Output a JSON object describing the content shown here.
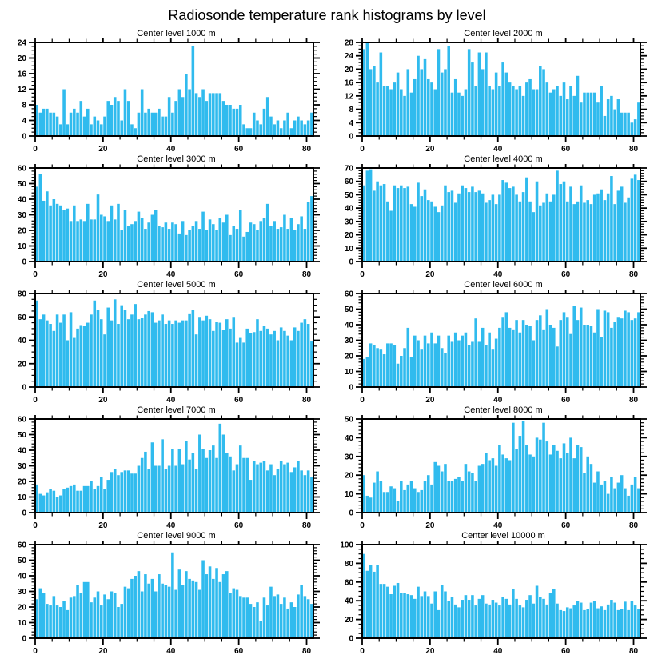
{
  "page_title": "Radiosonde temperature rank histograms by level",
  "colors": {
    "bar": "#30BBEE",
    "frame": "#000000",
    "background": "#FFFFFF"
  },
  "chart_data": [
    {
      "type": "bar",
      "title": "Center level 1000 m",
      "xlabel": "",
      "ylabel": "",
      "xlim": [
        0,
        82
      ],
      "ylim": [
        0,
        24
      ],
      "x_major_ticks": [
        0,
        20,
        40,
        60,
        80
      ],
      "x_minor_step": 5,
      "y_major_step": 4,
      "y_minor_step": 1,
      "grid": false,
      "legend": "none",
      "values": [
        8,
        6,
        7,
        7,
        6,
        6,
        5,
        3,
        12,
        3,
        6,
        7,
        6,
        9,
        5,
        7,
        3,
        5,
        4,
        3,
        5,
        9,
        8,
        10,
        9,
        4,
        12,
        9,
        3,
        2,
        6,
        12,
        6,
        7,
        6,
        6,
        7,
        5,
        5,
        10,
        6,
        9,
        12,
        10,
        16,
        12,
        23,
        11,
        10,
        12,
        9,
        11,
        11,
        11,
        11,
        9,
        8,
        8,
        7,
        7,
        8,
        3,
        2,
        2,
        6,
        4,
        3,
        7,
        10,
        5,
        3,
        4,
        2,
        4,
        6,
        2,
        4,
        5,
        4,
        3,
        4,
        6
      ]
    },
    {
      "type": "bar",
      "title": "Center level 2000 m",
      "xlabel": "",
      "ylabel": "",
      "xlim": [
        0,
        82
      ],
      "ylim": [
        0,
        28
      ],
      "x_major_ticks": [
        0,
        20,
        40,
        60,
        80
      ],
      "x_minor_step": 5,
      "y_major_step": 4,
      "y_minor_step": 1,
      "grid": false,
      "legend": "none",
      "values": [
        26,
        28,
        20,
        21,
        16,
        25,
        15,
        15,
        14,
        16,
        19,
        14,
        12,
        20,
        13,
        17,
        24,
        20,
        23,
        17,
        16,
        14,
        26,
        19,
        20,
        27,
        13,
        17,
        13,
        12,
        14,
        26,
        22,
        15,
        25,
        20,
        25,
        15,
        14,
        19,
        15,
        22,
        19,
        16,
        15,
        14,
        15,
        12,
        16,
        17,
        14,
        14,
        21,
        20,
        16,
        13,
        14,
        15,
        12,
        16,
        11,
        15,
        12,
        18,
        10,
        13,
        13,
        13,
        13,
        10,
        15,
        6,
        11,
        12,
        8,
        11,
        7,
        7,
        7,
        4,
        5,
        10
      ]
    },
    {
      "type": "bar",
      "title": "Center level 3000 m",
      "xlabel": "",
      "ylabel": "",
      "xlim": [
        0,
        82
      ],
      "ylim": [
        0,
        60
      ],
      "x_major_ticks": [
        0,
        20,
        40,
        60,
        80
      ],
      "x_minor_step": 5,
      "y_major_step": 10,
      "y_minor_step": 2,
      "grid": false,
      "legend": "none",
      "values": [
        48,
        56,
        39,
        45,
        36,
        40,
        37,
        36,
        33,
        34,
        26,
        36,
        26,
        27,
        26,
        37,
        27,
        27,
        43,
        30,
        29,
        26,
        36,
        27,
        37,
        20,
        33,
        23,
        24,
        26,
        32,
        28,
        21,
        25,
        30,
        33,
        23,
        22,
        25,
        21,
        25,
        24,
        18,
        26,
        17,
        20,
        23,
        26,
        21,
        32,
        20,
        27,
        24,
        20,
        28,
        25,
        30,
        17,
        23,
        21,
        33,
        16,
        19,
        25,
        24,
        20,
        26,
        28,
        37,
        23,
        26,
        21,
        22,
        30,
        21,
        28,
        20,
        24,
        29,
        21,
        38,
        42
      ]
    },
    {
      "type": "bar",
      "title": "Center level 4000 m",
      "xlabel": "",
      "ylabel": "",
      "xlim": [
        0,
        82
      ],
      "ylim": [
        0,
        70
      ],
      "x_major_ticks": [
        0,
        20,
        40,
        60,
        80
      ],
      "x_minor_step": 5,
      "y_major_step": 10,
      "y_minor_step": 2,
      "grid": false,
      "legend": "none",
      "values": [
        57,
        68,
        69,
        53,
        60,
        57,
        58,
        45,
        38,
        57,
        55,
        57,
        55,
        56,
        43,
        41,
        59,
        49,
        54,
        46,
        45,
        41,
        37,
        42,
        57,
        52,
        53,
        44,
        51,
        57,
        55,
        52,
        56,
        52,
        53,
        51,
        44,
        46,
        50,
        43,
        50,
        61,
        59,
        55,
        56,
        50,
        45,
        52,
        63,
        45,
        37,
        60,
        42,
        44,
        51,
        45,
        50,
        68,
        58,
        60,
        45,
        56,
        43,
        45,
        57,
        44,
        46,
        43,
        50,
        51,
        54,
        46,
        51,
        64,
        43,
        53,
        56,
        44,
        48,
        62,
        65,
        61
      ]
    },
    {
      "type": "bar",
      "title": "Center level 5000 m",
      "xlabel": "",
      "ylabel": "",
      "xlim": [
        0,
        82
      ],
      "ylim": [
        0,
        80
      ],
      "x_major_ticks": [
        0,
        20,
        40,
        60,
        80
      ],
      "x_minor_step": 5,
      "y_major_step": 20,
      "y_minor_step": 5,
      "grid": false,
      "legend": "none",
      "values": [
        74,
        58,
        62,
        57,
        54,
        48,
        62,
        55,
        62,
        40,
        64,
        42,
        50,
        53,
        52,
        55,
        62,
        74,
        66,
        58,
        45,
        68,
        57,
        75,
        54,
        70,
        66,
        58,
        62,
        71,
        58,
        59,
        62,
        65,
        64,
        55,
        57,
        62,
        54,
        57,
        54,
        57,
        55,
        57,
        57,
        63,
        66,
        45,
        60,
        57,
        61,
        58,
        48,
        56,
        55,
        49,
        58,
        50,
        60,
        38,
        42,
        38,
        50,
        46,
        47,
        58,
        48,
        52,
        50,
        45,
        48,
        40,
        51,
        48,
        44,
        40,
        51,
        48,
        55,
        58,
        54,
        39
      ]
    },
    {
      "type": "bar",
      "title": "Center level 6000 m",
      "xlabel": "",
      "ylabel": "",
      "xlim": [
        0,
        82
      ],
      "ylim": [
        0,
        60
      ],
      "x_major_ticks": [
        0,
        20,
        40,
        60,
        80
      ],
      "x_minor_step": 5,
      "y_major_step": 10,
      "y_minor_step": 2,
      "grid": false,
      "legend": "none",
      "values": [
        18,
        19,
        28,
        27,
        25,
        24,
        21,
        28,
        28,
        27,
        15,
        20,
        25,
        38,
        19,
        33,
        30,
        24,
        33,
        28,
        35,
        28,
        33,
        25,
        22,
        33,
        29,
        35,
        30,
        33,
        35,
        27,
        29,
        44,
        29,
        38,
        27,
        35,
        24,
        31,
        38,
        45,
        48,
        38,
        37,
        43,
        35,
        43,
        40,
        39,
        30,
        43,
        46,
        37,
        50,
        40,
        38,
        26,
        43,
        48,
        45,
        34,
        52,
        43,
        51,
        40,
        40,
        39,
        35,
        50,
        32,
        49,
        48,
        38,
        42,
        45,
        44,
        49,
        48,
        43,
        44,
        48
      ]
    },
    {
      "type": "bar",
      "title": "Center level 7000 m",
      "xlabel": "",
      "ylabel": "",
      "xlim": [
        0,
        82
      ],
      "ylim": [
        0,
        60
      ],
      "x_major_ticks": [
        0,
        20,
        40,
        60,
        80
      ],
      "x_minor_step": 5,
      "y_major_step": 10,
      "y_minor_step": 2,
      "grid": false,
      "legend": "none",
      "values": [
        18,
        12,
        11,
        13,
        15,
        14,
        10,
        11,
        15,
        16,
        17,
        18,
        14,
        14,
        17,
        17,
        20,
        15,
        17,
        23,
        15,
        21,
        26,
        28,
        24,
        26,
        27,
        27,
        25,
        25,
        30,
        35,
        39,
        28,
        45,
        30,
        30,
        47,
        28,
        30,
        41,
        30,
        41,
        31,
        46,
        34,
        38,
        28,
        50,
        41,
        35,
        40,
        43,
        35,
        57,
        50,
        38,
        36,
        27,
        31,
        43,
        35,
        35,
        21,
        33,
        31,
        32,
        33,
        27,
        31,
        24,
        28,
        33,
        31,
        32,
        26,
        29,
        33,
        27,
        24,
        27,
        23
      ]
    },
    {
      "type": "bar",
      "title": "Center level 8000 m",
      "xlabel": "",
      "ylabel": "",
      "xlim": [
        0,
        82
      ],
      "ylim": [
        0,
        50
      ],
      "x_major_ticks": [
        0,
        20,
        40,
        60,
        80
      ],
      "x_minor_step": 5,
      "y_major_step": 10,
      "y_minor_step": 2,
      "grid": false,
      "legend": "none",
      "values": [
        20,
        9,
        8,
        16,
        22,
        17,
        11,
        11,
        14,
        13,
        6,
        17,
        12,
        15,
        17,
        13,
        11,
        12,
        17,
        20,
        15,
        27,
        25,
        22,
        26,
        17,
        17,
        18,
        19,
        17,
        26,
        22,
        21,
        17,
        25,
        26,
        32,
        28,
        29,
        25,
        36,
        31,
        29,
        28,
        48,
        34,
        41,
        49,
        36,
        31,
        30,
        40,
        39,
        48,
        38,
        31,
        36,
        33,
        29,
        37,
        32,
        40,
        29,
        36,
        35,
        21,
        30,
        26,
        16,
        22,
        15,
        17,
        10,
        19,
        13,
        16,
        20,
        13,
        9,
        15,
        19,
        13
      ]
    },
    {
      "type": "bar",
      "title": "Center level 9000 m",
      "xlabel": "",
      "ylabel": "",
      "xlim": [
        0,
        82
      ],
      "ylim": [
        0,
        60
      ],
      "x_major_ticks": [
        0,
        20,
        40,
        60,
        80
      ],
      "x_minor_step": 5,
      "y_major_step": 10,
      "y_minor_step": 2,
      "grid": false,
      "legend": "none",
      "values": [
        25,
        32,
        29,
        22,
        21,
        27,
        21,
        20,
        24,
        18,
        26,
        27,
        34,
        29,
        36,
        36,
        23,
        26,
        30,
        21,
        28,
        25,
        30,
        29,
        20,
        22,
        33,
        32,
        38,
        40,
        43,
        30,
        41,
        35,
        38,
        30,
        41,
        35,
        34,
        33,
        55,
        31,
        44,
        34,
        43,
        38,
        37,
        36,
        31,
        50,
        41,
        46,
        38,
        45,
        36,
        41,
        43,
        29,
        32,
        31,
        27,
        26,
        26,
        22,
        20,
        23,
        11,
        26,
        21,
        33,
        27,
        28,
        22,
        26,
        19,
        23,
        20,
        28,
        34,
        27,
        25,
        22
      ]
    },
    {
      "type": "bar",
      "title": "Center level 10000 m",
      "xlabel": "",
      "ylabel": "",
      "xlim": [
        0,
        82
      ],
      "ylim": [
        0,
        100
      ],
      "x_major_ticks": [
        0,
        20,
        40,
        60,
        80
      ],
      "x_minor_step": 5,
      "y_major_step": 20,
      "y_minor_step": 5,
      "grid": false,
      "legend": "none",
      "values": [
        90,
        72,
        78,
        71,
        78,
        58,
        58,
        55,
        47,
        56,
        59,
        48,
        48,
        47,
        46,
        42,
        55,
        45,
        50,
        45,
        37,
        50,
        30,
        57,
        50,
        40,
        44,
        36,
        33,
        41,
        46,
        41,
        46,
        35,
        42,
        46,
        37,
        36,
        41,
        38,
        35,
        44,
        42,
        36,
        53,
        42,
        35,
        33,
        41,
        46,
        37,
        56,
        44,
        42,
        36,
        48,
        53,
        37,
        30,
        29,
        33,
        32,
        35,
        40,
        38,
        30,
        31,
        38,
        40,
        32,
        34,
        30,
        36,
        41,
        38,
        30,
        31,
        39,
        30,
        40,
        35,
        31
      ]
    }
  ]
}
